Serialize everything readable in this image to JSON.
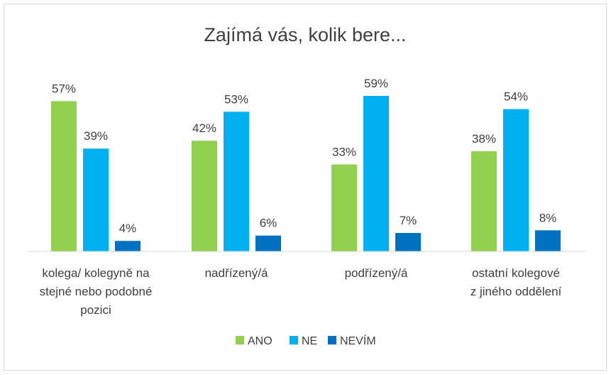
{
  "chart_data": {
    "type": "bar",
    "title": "Zajímá vás, kolik bere...",
    "categories": [
      [
        "kolega/ kolegyně na",
        "stejné nebo podobné",
        "pozici"
      ],
      [
        "nadřízený/á"
      ],
      [
        "podřízený/á"
      ],
      [
        "ostatní kolegové",
        "z jiného oddělení"
      ]
    ],
    "series": [
      {
        "name": "ANO",
        "color": "#92d050",
        "values": [
          57,
          42,
          33,
          38
        ],
        "labels": [
          "57%",
          "42%",
          "33%",
          "38%"
        ]
      },
      {
        "name": "NE",
        "color": "#00b0f0",
        "values": [
          39,
          53,
          59,
          54
        ],
        "labels": [
          "39%",
          "53%",
          "59%",
          "54%"
        ]
      },
      {
        "name": "NEVÍM",
        "color": "#0070c0",
        "values": [
          4,
          6,
          7,
          8
        ],
        "labels": [
          "4%",
          "6%",
          "7%",
          "8%"
        ]
      }
    ],
    "ylim": [
      0,
      59
    ],
    "grid": false,
    "legend_position": "bottom",
    "xlabel": "",
    "ylabel": ""
  }
}
